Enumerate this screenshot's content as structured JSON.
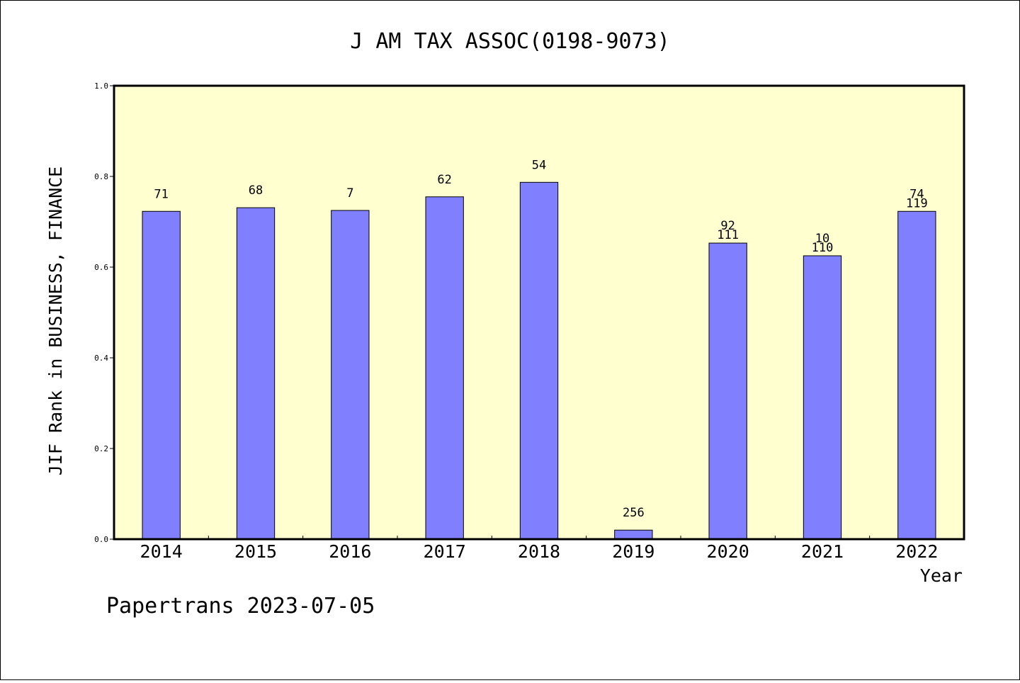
{
  "chart_data": {
    "type": "bar",
    "title": "J AM TAX ASSOC(0198-9073)",
    "xlabel": "Year",
    "ylabel": "JIF Rank in BUSINESS, FINANCE",
    "ylim": [
      0,
      1.0
    ],
    "yticks": [
      "0.0",
      "0.2",
      "0.4",
      "0.6",
      "0.8",
      "1.0"
    ],
    "categories": [
      "2014",
      "2015",
      "2016",
      "2017",
      "2018",
      "2019",
      "2020",
      "2021",
      "2022"
    ],
    "values": [
      0.723,
      0.731,
      0.725,
      0.755,
      0.787,
      0.02,
      0.653,
      0.625,
      0.723
    ],
    "labels": [
      [
        "71"
      ],
      [
        "68"
      ],
      [
        "7"
      ],
      [
        "62"
      ],
      [
        "54"
      ],
      [
        "256"
      ],
      [
        "92",
        "111"
      ],
      [
        "10",
        "110"
      ],
      [
        "74",
        "119"
      ]
    ],
    "grid": false,
    "colors": {
      "bar_fill": "#8080ff",
      "plot_background": "#ffffd0",
      "axis": "#000000"
    }
  },
  "footer": "Papertrans 2023-07-05"
}
